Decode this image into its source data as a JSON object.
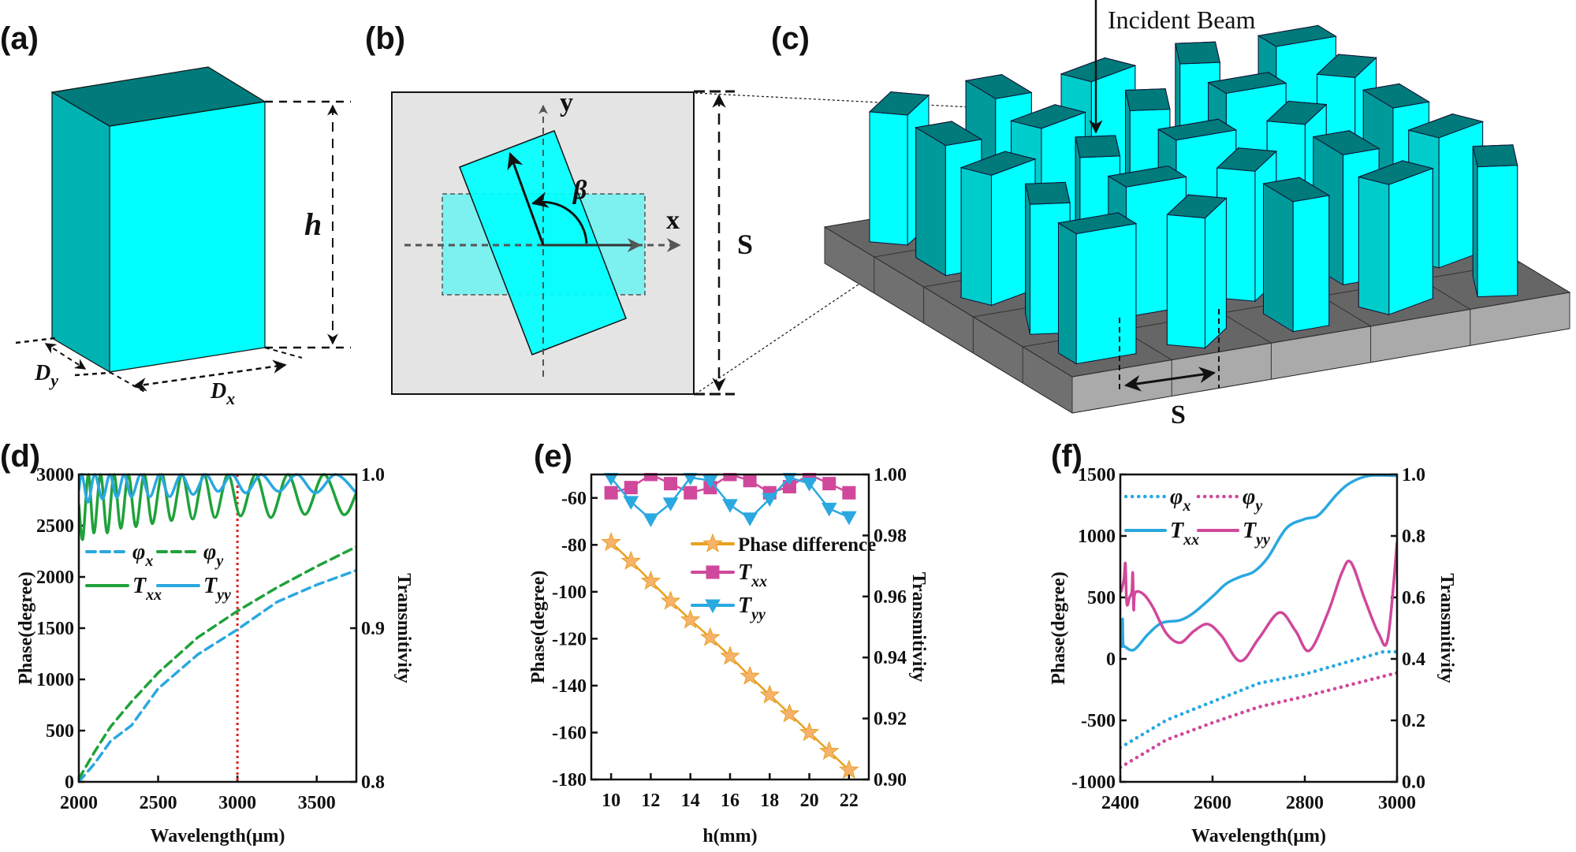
{
  "panel_labels": {
    "a": "(a)",
    "b": "(b)",
    "c": "(c)",
    "d": "(d)",
    "e": "(e)",
    "f": "(f)"
  },
  "diagram_a": {
    "height_label": "h",
    "dy_label": {
      "main": "D",
      "sub": "y"
    },
    "dx_label": {
      "main": "D",
      "sub": "x"
    }
  },
  "diagram_b": {
    "y_axis_label": "y",
    "x_axis_label": "x",
    "angle_label": "β",
    "period_label": "S"
  },
  "diagram_c": {
    "incident_label": "Incident Beam",
    "period_label": "S"
  },
  "colors": {
    "pillar_light": "#00ffff",
    "pillar_side": "#009a9a",
    "pillar_top": "#007a7a",
    "substrate_top": "#666666",
    "substrate_side": "#aaaaaa",
    "cell_bg": "#e4e4e4"
  },
  "chart_data": [
    {
      "type": "line",
      "panel": "(d)",
      "xlabel": "Wavelength(μm)",
      "ylabel": "Phase(degree)",
      "y2label": "Transmitivity",
      "xlim": [
        2000,
        3750
      ],
      "ylim": [
        0,
        3000
      ],
      "y2lim": [
        0.8,
        1.0
      ],
      "xticks": [
        2000,
        2500,
        3000,
        3500
      ],
      "yticks": [
        0,
        500,
        1000,
        1500,
        2000,
        2500,
        3000
      ],
      "y2ticks": [
        "0.8",
        "0.9",
        "1.0"
      ],
      "vline": {
        "x": 3000,
        "color": "#e02020",
        "style": "dotted"
      },
      "series": [
        {
          "name": "φ",
          "sub": "x",
          "axis": "left",
          "color": "#2aa8e0",
          "style": "dashed",
          "points": [
            [
              2000,
              0
            ],
            [
              2100,
              180
            ],
            [
              2200,
              397
            ],
            [
              2332,
              551
            ],
            [
              2500,
              910
            ],
            [
              2750,
              1243
            ],
            [
              3000,
              1487
            ],
            [
              3250,
              1756
            ],
            [
              3500,
              1923
            ],
            [
              3750,
              2064
            ]
          ]
        },
        {
          "name": "φ",
          "sub": "y",
          "axis": "left",
          "color": "#1fa23a",
          "style": "dashed",
          "points": [
            [
              2000,
              30
            ],
            [
              2100,
              295
            ],
            [
              2200,
              538
            ],
            [
              2332,
              782
            ],
            [
              2500,
              1064
            ],
            [
              2750,
              1410
            ],
            [
              3000,
              1667
            ],
            [
              3250,
              1897
            ],
            [
              3500,
              2103
            ],
            [
              3750,
              2295
            ]
          ]
        },
        {
          "name": "T",
          "sub": "xx",
          "axis": "right",
          "color": "#1fa23a",
          "style": "solid",
          "smooth": true,
          "points": [
            [
              2000,
              0.98
            ],
            [
              2025,
              0.958
            ],
            [
              2060,
              1.0
            ],
            [
              2095,
              0.962
            ],
            [
              2137,
              1.0
            ],
            [
              2179,
              0.962
            ],
            [
              2222,
              1.0
            ],
            [
              2265,
              0.965
            ],
            [
              2312,
              1.0
            ],
            [
              2360,
              0.966
            ],
            [
              2412,
              1.0
            ],
            [
              2464,
              0.968
            ],
            [
              2524,
              1.0
            ],
            [
              2584,
              0.97
            ],
            [
              2651,
              1.0
            ],
            [
              2718,
              0.971
            ],
            [
              2788,
              1.0
            ],
            [
              2859,
              0.972
            ],
            [
              2940,
              1.0
            ],
            [
              3020,
              0.973
            ],
            [
              3115,
              1.0
            ],
            [
              3211,
              0.972
            ],
            [
              3318,
              1.0
            ],
            [
              3426,
              0.974
            ],
            [
              3546,
              1.0
            ],
            [
              3667,
              0.974
            ],
            [
              3750,
              0.988
            ]
          ]
        },
        {
          "name": "T",
          "sub": "yy",
          "axis": "right",
          "color": "#2aa8e0",
          "style": "solid",
          "smooth": true,
          "points": [
            [
              2000,
              0.99
            ],
            [
              2020,
              1.0
            ],
            [
              2058,
              0.982
            ],
            [
              2100,
              1.0
            ],
            [
              2149,
              0.984
            ],
            [
              2195,
              1.0
            ],
            [
              2240,
              0.985
            ],
            [
              2285,
              1.0
            ],
            [
              2332,
              0.9855
            ],
            [
              2390,
              1.0
            ],
            [
              2448,
              0.9855
            ],
            [
              2510,
              1.0
            ],
            [
              2572,
              0.9855
            ],
            [
              2645,
              1.0
            ],
            [
              2721,
              0.987
            ],
            [
              2800,
              1.0
            ],
            [
              2879,
              0.989
            ],
            [
              2965,
              1.0
            ],
            [
              3053,
              0.988
            ],
            [
              3150,
              1.0
            ],
            [
              3260,
              0.989
            ],
            [
              3375,
              1.0
            ],
            [
              3493,
              0.988
            ],
            [
              3620,
              1.0
            ],
            [
              3750,
              0.988
            ]
          ]
        }
      ]
    },
    {
      "type": "line",
      "panel": "(e)",
      "xlabel": "h(mm)",
      "ylabel": "Phase(degree)",
      "y2label": "Transmitivity",
      "xlim": [
        9,
        23
      ],
      "ylim": [
        -180,
        -50
      ],
      "y2lim": [
        0.9,
        1.0
      ],
      "xticks": [
        10,
        12,
        14,
        16,
        18,
        20,
        22
      ],
      "yticks": [
        -180,
        -160,
        -140,
        -120,
        -100,
        -80,
        -60
      ],
      "y2ticks": [
        "0.90",
        "0.92",
        "0.94",
        "0.96",
        "0.98",
        "1.00"
      ],
      "series": [
        {
          "name": "Phase difference",
          "sub": "",
          "axis": "left",
          "color": "#e8a020",
          "marker_color": "#f7b26b",
          "style": "solid",
          "marker": "star",
          "points": [
            [
              10,
              -79
            ],
            [
              11,
              -87
            ],
            [
              12,
              -95.5
            ],
            [
              13,
              -104
            ],
            [
              14,
              -112
            ],
            [
              15,
              -119.5
            ],
            [
              16,
              -127.5
            ],
            [
              17,
              -136
            ],
            [
              18,
              -144
            ],
            [
              19,
              -152
            ],
            [
              20,
              -160
            ],
            [
              21,
              -168
            ],
            [
              22,
              -176
            ]
          ]
        },
        {
          "name": "T",
          "sub": "xx",
          "axis": "right",
          "color": "#d0489b",
          "style": "solid",
          "marker": "square",
          "points": [
            [
              10,
              0.994
            ],
            [
              11,
              0.9957
            ],
            [
              12,
              1.0
            ],
            [
              13,
              0.997
            ],
            [
              14,
              0.994
            ],
            [
              15,
              0.9957
            ],
            [
              16,
              1.0
            ],
            [
              17,
              0.998
            ],
            [
              18,
              0.994
            ],
            [
              19,
              0.996
            ],
            [
              20,
              1.0
            ],
            [
              21,
              0.997
            ],
            [
              22,
              0.994
            ]
          ]
        },
        {
          "name": "T",
          "sub": "yy",
          "axis": "right",
          "color": "#2aa8e0",
          "style": "solid",
          "marker": "triangle-down",
          "points": [
            [
              10,
              0.9989
            ],
            [
              11,
              0.991
            ],
            [
              12,
              0.9853
            ],
            [
              13,
              0.9905
            ],
            [
              14,
              0.999
            ],
            [
              15,
              0.998
            ],
            [
              16,
              0.99
            ],
            [
              17,
              0.9856
            ],
            [
              18,
              0.992
            ],
            [
              19,
              0.999
            ],
            [
              20,
              0.997
            ],
            [
              21,
              0.9888
            ],
            [
              22,
              0.986
            ]
          ]
        }
      ]
    },
    {
      "type": "line",
      "panel": "(f)",
      "xlabel": "Wavelength(μm)",
      "ylabel": "Phase(degree)",
      "y2label": "Transmitivity",
      "xlim": [
        2400,
        3000
      ],
      "ylim": [
        -1000,
        1500
      ],
      "y2lim": [
        0,
        1.0
      ],
      "xticks": [
        2400,
        2600,
        2800,
        3000
      ],
      "yticks": [
        -1000,
        -500,
        0,
        500,
        1000,
        1500
      ],
      "y2ticks": [
        "0.0",
        "0.2",
        "0.4",
        "0.6",
        "0.8",
        "1.0"
      ],
      "series": [
        {
          "name": "φ",
          "sub": "x",
          "axis": "left",
          "color": "#2aa8e0",
          "style": "dotted",
          "points": [
            [
              2400,
              -722
            ],
            [
              2500,
              -498
            ],
            [
              2600,
              -348
            ],
            [
              2700,
              -199
            ],
            [
              2800,
              -124
            ],
            [
              2900,
              -17
            ],
            [
              2970,
              58
            ],
            [
              3000,
              58
            ]
          ]
        },
        {
          "name": "φ",
          "sub": "y",
          "axis": "left",
          "color": "#d0489b",
          "style": "dotted",
          "points": [
            [
              2400,
              -882
            ],
            [
              2500,
              -658
            ],
            [
              2600,
              -519
            ],
            [
              2700,
              -391
            ],
            [
              2800,
              -305
            ],
            [
              2900,
              -209
            ],
            [
              3000,
              -113
            ]
          ]
        },
        {
          "name": "T",
          "sub": "xx",
          "axis": "right",
          "color": "#2aa8e0",
          "style": "solid",
          "smooth": true,
          "points": [
            [
              2404,
              0.44
            ],
            [
              2405,
              0.53
            ],
            [
              2406,
              0.45
            ],
            [
              2410,
              0.44
            ],
            [
              2430,
              0.43
            ],
            [
              2460,
              0.48
            ],
            [
              2490,
              0.517
            ],
            [
              2530,
              0.526
            ],
            [
              2560,
              0.551
            ],
            [
              2600,
              0.603
            ],
            [
              2630,
              0.645
            ],
            [
              2660,
              0.667
            ],
            [
              2690,
              0.684
            ],
            [
              2720,
              0.73
            ],
            [
              2760,
              0.825
            ],
            [
              2800,
              0.855
            ],
            [
              2830,
              0.868
            ],
            [
              2870,
              0.936
            ],
            [
              2900,
              0.974
            ],
            [
              2940,
              0.996
            ],
            [
              3000,
              0.996
            ]
          ]
        },
        {
          "name": "T",
          "sub": "yy",
          "axis": "right",
          "color": "#d0489b",
          "style": "solid",
          "smooth": true,
          "points": [
            [
              2402,
              0.62
            ],
            [
              2408,
              0.66
            ],
            [
              2411,
              0.71
            ],
            [
              2414,
              0.58
            ],
            [
              2420,
              0.6
            ],
            [
              2425,
              0.62
            ],
            [
              2427,
              0.68
            ],
            [
              2429,
              0.56
            ],
            [
              2432,
              0.615
            ],
            [
              2450,
              0.611
            ],
            [
              2470,
              0.57
            ],
            [
              2500,
              0.483
            ],
            [
              2530,
              0.453
            ],
            [
              2560,
              0.491
            ],
            [
              2590,
              0.513
            ],
            [
              2620,
              0.474
            ],
            [
              2660,
              0.393
            ],
            [
              2700,
              0.466
            ],
            [
              2745,
              0.551
            ],
            [
              2780,
              0.491
            ],
            [
              2810,
              0.427
            ],
            [
              2850,
              0.55
            ],
            [
              2880,
              0.679
            ],
            [
              2900,
              0.714
            ],
            [
              2930,
              0.594
            ],
            [
              2960,
              0.483
            ],
            [
              2980,
              0.466
            ],
            [
              3000,
              0.778
            ]
          ]
        }
      ]
    }
  ]
}
